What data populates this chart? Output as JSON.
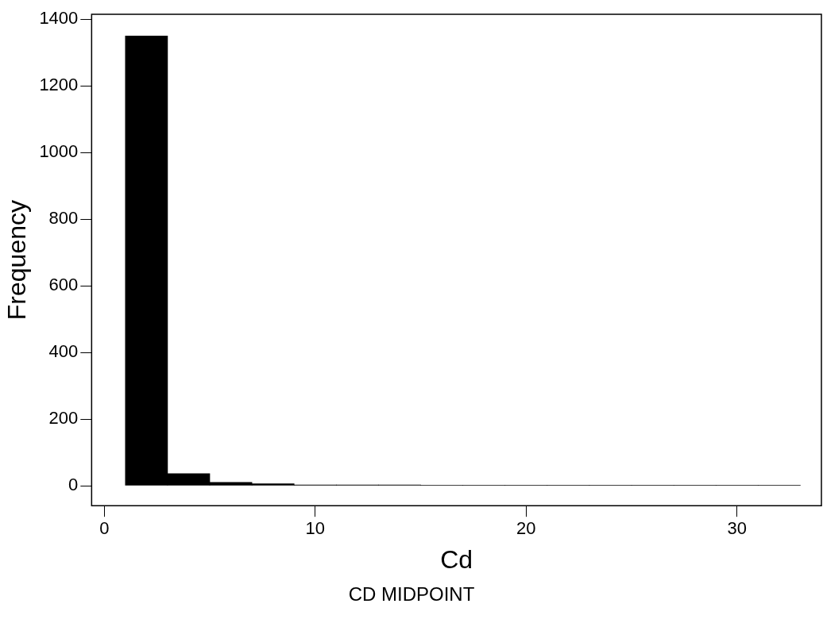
{
  "chart_data": {
    "type": "histogram",
    "xlabel": "Cd",
    "ylabel": "Frequency",
    "annotations": [
      "CD MIDPOINT"
    ],
    "bins": [
      1,
      3,
      5,
      7,
      9,
      11,
      13,
      15,
      17,
      19,
      21,
      23,
      25,
      27,
      29,
      31,
      33
    ],
    "values": [
      1350,
      36,
      10,
      6,
      2,
      2,
      2,
      1,
      1,
      1,
      1,
      1,
      1,
      1,
      1,
      1
    ],
    "color": "#000000",
    "xlim": [
      -0.6,
      34
    ],
    "xticks": [
      0,
      10,
      20,
      30
    ],
    "ylim": [
      -60,
      1415
    ],
    "yticks": [
      0,
      200,
      400,
      600,
      800,
      1000,
      1200,
      1400
    ],
    "grid": false,
    "legend": false
  }
}
